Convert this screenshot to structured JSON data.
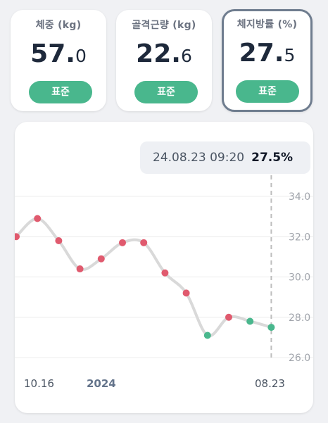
{
  "cards": [
    {
      "label": "체중 (kg)",
      "int": "57.",
      "dec": "0",
      "status": "표준"
    },
    {
      "label": "골격근량 (kg)",
      "int": "22.",
      "dec": "6",
      "status": "표준"
    },
    {
      "label": "체지방률 (%)",
      "int": "27.",
      "dec": "5",
      "status": "표준",
      "selected": true
    }
  ],
  "tooltip": {
    "datetime": "24.08.23 09:20",
    "value": "27.5%"
  },
  "colors": {
    "high": "#e05a6e",
    "normal": "#49b78d",
    "line": "#d9d9d9",
    "badge": "#49b78d"
  },
  "chart_data": {
    "type": "line",
    "y_ticks": [
      "34.0",
      "32.0",
      "30.0",
      "28.0",
      "26.0"
    ],
    "ylim": [
      26.0,
      34.0
    ],
    "x_labels": [
      "10.16",
      "2024",
      "08.23"
    ],
    "series": [
      {
        "values": [
          32.0,
          32.9,
          31.8,
          30.4,
          30.9,
          31.7,
          31.7,
          30.2,
          29.2,
          27.1,
          28.0,
          27.8,
          27.5
        ],
        "status": [
          "high",
          "high",
          "high",
          "high",
          "high",
          "high",
          "high",
          "high",
          "high",
          "normal",
          "high",
          "normal",
          "normal"
        ]
      }
    ]
  }
}
